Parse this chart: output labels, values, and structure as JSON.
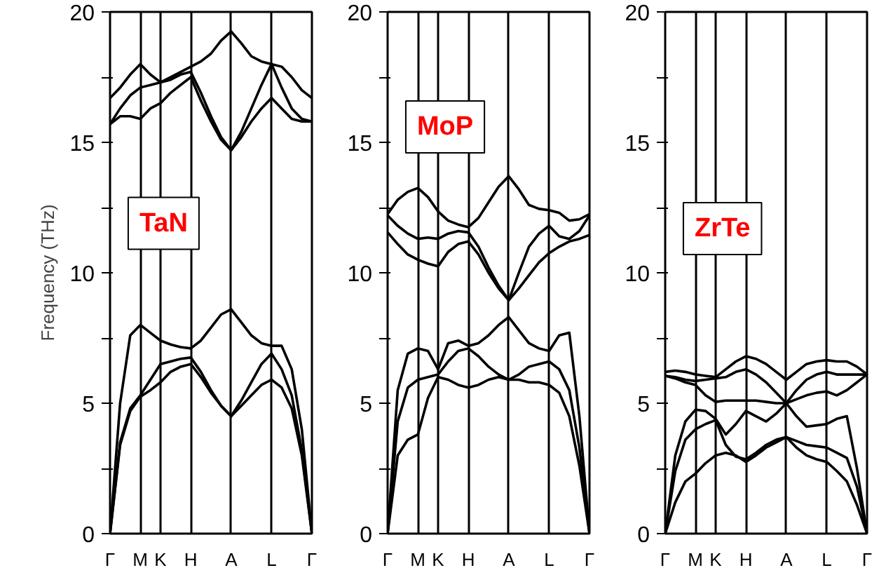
{
  "chart_data": [
    {
      "type": "line",
      "ylabel": "Frequency (THz)",
      "annotations": [
        "TaN"
      ],
      "ylim": [
        0,
        20
      ],
      "grid": "x",
      "marker": "none",
      "line_style": "solid",
      "categories": [
        "Γ",
        null,
        null,
        "M",
        null,
        "K",
        null,
        null,
        "H",
        null,
        null,
        null,
        "A",
        null,
        null,
        null,
        "L",
        null,
        null,
        null,
        "Γ"
      ],
      "yticks": [
        0,
        {
          "value": 2.5,
          "label": null
        },
        5,
        {
          "value": 7.5,
          "label": null
        },
        10,
        {
          "value": 12.5,
          "label": null
        },
        15,
        {
          "value": 17.5,
          "label": null
        },
        20
      ],
      "series": [
        {
          "color": "#000000",
          "values": [
            0,
            5.0,
            7.6,
            8.0,
            7.7,
            7.4,
            7.25,
            7.15,
            7.1,
            7.4,
            7.9,
            8.4,
            8.6,
            8.1,
            7.6,
            7.3,
            7.2,
            7.2,
            6.3,
            4.0,
            0
          ]
        },
        {
          "color": "#000000",
          "values": [
            0,
            3.5,
            4.8,
            5.3,
            5.9,
            6.5,
            6.6,
            6.7,
            6.75,
            6.2,
            5.5,
            4.9,
            4.5,
            5.1,
            5.8,
            6.5,
            6.9,
            6.3,
            5.3,
            3.2,
            0
          ]
        },
        {
          "color": "#000000",
          "values": [
            0,
            3.4,
            4.7,
            5.25,
            5.5,
            5.8,
            6.2,
            6.4,
            6.5,
            6.0,
            5.4,
            4.9,
            4.5,
            4.9,
            5.3,
            5.7,
            5.9,
            5.6,
            4.8,
            3.0,
            0
          ]
        },
        {
          "color": "#000000",
          "values": [
            16.7,
            17.1,
            17.6,
            18.0,
            17.6,
            17.3,
            17.5,
            17.7,
            17.9,
            18.1,
            18.4,
            18.9,
            19.25,
            18.8,
            18.3,
            18.1,
            18.0,
            17.9,
            17.5,
            17.0,
            16.7
          ]
        },
        {
          "color": "#000000",
          "values": [
            15.7,
            16.3,
            16.8,
            17.1,
            17.2,
            17.3,
            17.4,
            17.6,
            17.7,
            16.9,
            16.0,
            15.2,
            14.7,
            15.4,
            16.3,
            17.2,
            18.0,
            17.1,
            16.3,
            15.9,
            15.8
          ]
        },
        {
          "color": "#000000",
          "values": [
            15.7,
            16.0,
            16.0,
            15.9,
            16.3,
            16.5,
            16.9,
            17.2,
            17.5,
            16.6,
            15.8,
            15.1,
            14.7,
            15.2,
            15.8,
            16.3,
            16.7,
            16.3,
            15.9,
            15.8,
            15.8
          ]
        }
      ]
    },
    {
      "type": "line",
      "annotations": [
        "MoP"
      ],
      "ylim": [
        0,
        20
      ],
      "grid": "x",
      "marker": "none",
      "line_style": "solid",
      "categories": [
        "Γ",
        null,
        null,
        "M",
        null,
        "K",
        null,
        null,
        "H",
        null,
        null,
        null,
        "A",
        null,
        null,
        null,
        "L",
        null,
        null,
        null,
        "Γ"
      ],
      "yticks": [
        0,
        {
          "value": 2.5,
          "label": null
        },
        5,
        {
          "value": 7.5,
          "label": null
        },
        10,
        {
          "value": 12.5,
          "label": null
        },
        15,
        {
          "value": 17.5,
          "label": null
        },
        20
      ],
      "series": [
        {
          "color": "#000000",
          "values": [
            0,
            5.5,
            6.9,
            7.1,
            7.0,
            6.3,
            7.3,
            7.4,
            7.2,
            7.3,
            7.6,
            8.0,
            8.3,
            7.8,
            7.3,
            7.1,
            7.0,
            7.6,
            7.7,
            4.5,
            0
          ]
        },
        {
          "color": "#000000",
          "values": [
            0,
            4.3,
            5.6,
            5.9,
            6.0,
            6.1,
            6.6,
            7.0,
            7.1,
            6.8,
            6.4,
            6.1,
            5.9,
            6.1,
            6.4,
            6.5,
            6.6,
            6.3,
            5.5,
            3.3,
            0
          ]
        },
        {
          "color": "#000000",
          "values": [
            0,
            3.0,
            3.6,
            3.8,
            5.2,
            6.0,
            5.9,
            5.7,
            5.6,
            5.7,
            5.9,
            6.0,
            5.9,
            5.9,
            5.8,
            5.8,
            5.7,
            5.4,
            4.5,
            2.6,
            0
          ]
        },
        {
          "color": "#000000",
          "values": [
            12.25,
            12.8,
            13.1,
            13.25,
            12.9,
            12.35,
            12.0,
            11.85,
            11.75,
            12.1,
            12.7,
            13.3,
            13.7,
            13.2,
            12.6,
            12.45,
            12.4,
            12.3,
            12.0,
            12.05,
            12.25
          ]
        },
        {
          "color": "#000000",
          "values": [
            12.2,
            11.8,
            11.5,
            11.3,
            11.35,
            11.3,
            11.5,
            11.6,
            11.55,
            11.0,
            10.2,
            9.5,
            8.95,
            10.0,
            11.0,
            11.5,
            11.8,
            11.4,
            11.3,
            11.6,
            12.2
          ]
        },
        {
          "color": "#000000",
          "values": [
            11.55,
            11.1,
            10.7,
            10.5,
            10.35,
            10.25,
            10.8,
            11.1,
            11.2,
            10.7,
            10.0,
            9.4,
            8.95,
            9.4,
            9.9,
            10.4,
            10.75,
            11.0,
            11.2,
            11.3,
            11.45
          ]
        }
      ]
    },
    {
      "type": "line",
      "annotations": [
        "ZrTe"
      ],
      "ylim": [
        0,
        20
      ],
      "grid": "x",
      "marker": "none",
      "line_style": "solid",
      "categories": [
        "Γ",
        null,
        null,
        "M",
        null,
        "K",
        null,
        null,
        "H",
        null,
        null,
        null,
        "A",
        null,
        null,
        null,
        "L",
        null,
        null,
        null,
        "Γ"
      ],
      "yticks": [
        0,
        {
          "value": 2.5,
          "label": null
        },
        5,
        {
          "value": 7.5,
          "label": null
        },
        10,
        {
          "value": 12.5,
          "label": null
        },
        15,
        {
          "value": 17.5,
          "label": null
        },
        20
      ],
      "series": [
        {
          "color": "#000000",
          "values": [
            6.2,
            6.25,
            6.2,
            6.1,
            6.05,
            6.0,
            6.3,
            6.6,
            6.8,
            6.7,
            6.5,
            6.2,
            5.9,
            6.2,
            6.5,
            6.6,
            6.65,
            6.6,
            6.6,
            6.4,
            6.1
          ]
        },
        {
          "color": "#000000",
          "values": [
            6.05,
            6.0,
            5.9,
            5.85,
            5.9,
            5.95,
            6.0,
            6.2,
            6.3,
            6.1,
            5.8,
            5.4,
            5.0,
            5.5,
            5.9,
            6.1,
            6.2,
            6.1,
            6.1,
            6.1,
            6.1
          ]
        },
        {
          "color": "#000000",
          "values": [
            6.05,
            5.95,
            5.8,
            5.7,
            5.3,
            5.05,
            5.1,
            5.1,
            5.1,
            5.1,
            5.05,
            5.0,
            5.0,
            5.15,
            5.3,
            5.4,
            5.45,
            5.3,
            5.5,
            5.8,
            6.1
          ]
        },
        {
          "color": "#000000",
          "values": [
            0,
            3.0,
            4.3,
            4.75,
            4.7,
            4.4,
            3.8,
            4.2,
            4.7,
            4.5,
            4.3,
            4.6,
            5.0,
            4.5,
            4.1,
            4.15,
            4.2,
            4.4,
            4.5,
            2.5,
            0
          ]
        },
        {
          "color": "#000000",
          "values": [
            0,
            2.4,
            3.6,
            4.0,
            4.2,
            4.35,
            3.4,
            2.95,
            2.85,
            3.1,
            3.4,
            3.6,
            3.7,
            3.55,
            3.4,
            3.35,
            3.3,
            3.1,
            2.9,
            1.8,
            0
          ]
        },
        {
          "color": "#000000",
          "values": [
            0,
            1.2,
            2.0,
            2.3,
            2.7,
            3.0,
            3.1,
            3.0,
            2.75,
            3.0,
            3.3,
            3.5,
            3.7,
            3.3,
            3.0,
            2.85,
            2.75,
            2.4,
            2.0,
            1.1,
            0
          ]
        }
      ]
    }
  ]
}
